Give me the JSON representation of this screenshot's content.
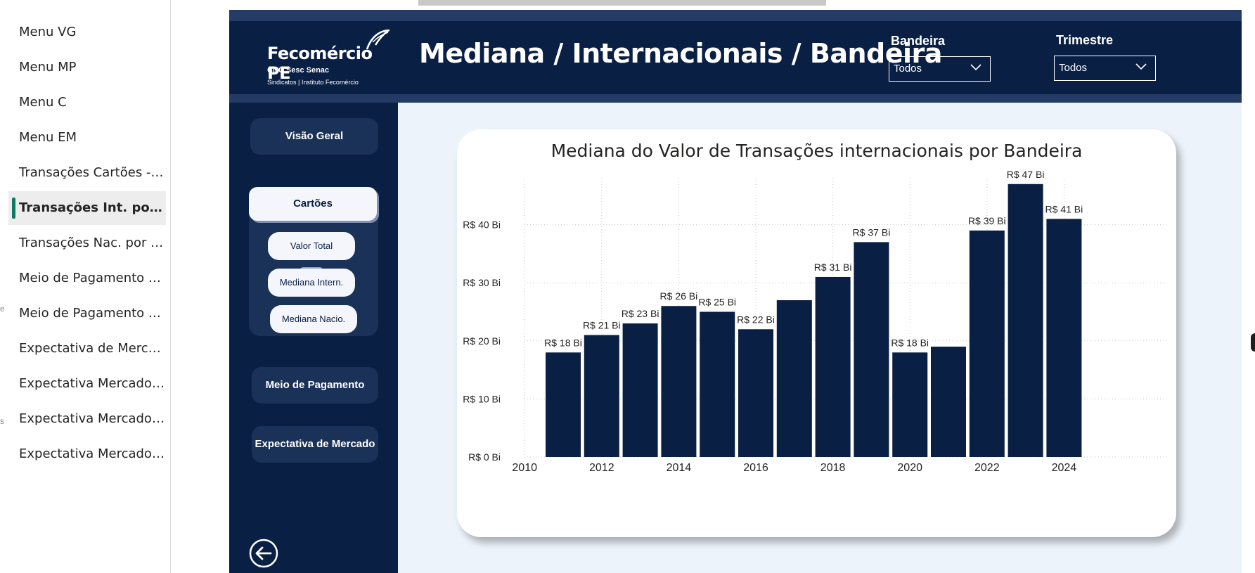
{
  "page_nav": {
    "items": [
      {
        "label": "Menu VG",
        "active": false
      },
      {
        "label": "Menu MP",
        "active": false
      },
      {
        "label": "Menu C",
        "active": false
      },
      {
        "label": "Menu EM",
        "active": false
      },
      {
        "label": "Transações Cartões - total",
        "active": false
      },
      {
        "label": "Transações Int. por Ban...",
        "active": true
      },
      {
        "label": "Transações Nac. por Ba...",
        "active": false
      },
      {
        "label": "Meio de Pagamento Me...",
        "active": false
      },
      {
        "label": "Meio de Pagamento Tri...",
        "active": false
      },
      {
        "label": "Expectativa de Mercado...",
        "active": false
      },
      {
        "label": "Expectativa Mercado An...",
        "active": false
      },
      {
        "label": "Expectativa Mercado Tri...",
        "active": false
      },
      {
        "label": "Expectativa Mercado Selic",
        "active": false
      }
    ],
    "edge_glyphs": [
      "e",
      "s"
    ]
  },
  "header": {
    "logo_main": "Fecomércio PE",
    "logo_sub": "CNC Sesc Senac",
    "logo_sub2": "Sindicatos | Instituto Fecomércio",
    "title": "Mediana / Internacionais / Bandeira"
  },
  "filters": {
    "bandeira": {
      "label": "Bandeira",
      "value": "Todos"
    },
    "trimestre": {
      "label": "Trimestre",
      "value": "Todos"
    }
  },
  "nav": {
    "visao_geral": "Visão Geral",
    "cartoes": "Cartões",
    "valor_total": "Valor Total",
    "mediana_intern": "Mediana Intern.",
    "mediana_nacio": "Mediana Nacio.",
    "meio_pagamento": "Meio de Pagamento",
    "expectativa_mercado": "Expectativa de Mercado",
    "back_icon": "arrow-left-circle-icon"
  },
  "colors": {
    "navy": "#0a1f44",
    "bar": "#0a1f44",
    "accent": "#117865"
  },
  "chart_data": {
    "type": "bar",
    "title": "Mediana do Valor de Transações internacionais por Bandeira",
    "xlabel": "",
    "ylabel": "",
    "x": [
      2011,
      2012,
      2013,
      2014,
      2015,
      2016,
      2017,
      2018,
      2019,
      2020,
      2021,
      2022,
      2023,
      2024
    ],
    "values": [
      18,
      21,
      23,
      26,
      25,
      22,
      27,
      31,
      37,
      18,
      19,
      39,
      47,
      41
    ],
    "data_labels": [
      "R$ 18 Bi",
      "R$ 21 Bi",
      "R$ 23 Bi",
      "R$ 26 Bi",
      "R$ 25 Bi",
      "R$ 22 Bi",
      "",
      "R$ 31 Bi",
      "R$ 37 Bi",
      "R$ 18 Bi",
      "",
      "R$ 39 Bi",
      "R$ 47 Bi",
      "R$ 41 Bi"
    ],
    "ylim": [
      0,
      50
    ],
    "xlim": [
      2010,
      2024
    ],
    "y_ticks": [
      0,
      10,
      20,
      30,
      40
    ],
    "y_tick_labels": [
      "R$ 0 Bi",
      "R$ 10 Bi",
      "R$ 20 Bi",
      "R$ 30 Bi",
      "R$ 40 Bi"
    ],
    "x_ticks": [
      2010,
      2012,
      2014,
      2016,
      2018,
      2020,
      2022,
      2024
    ],
    "x_tick_labels": [
      "2010",
      "2012",
      "2014",
      "2016",
      "2018",
      "2020",
      "2022",
      "2024"
    ],
    "grid": true
  }
}
